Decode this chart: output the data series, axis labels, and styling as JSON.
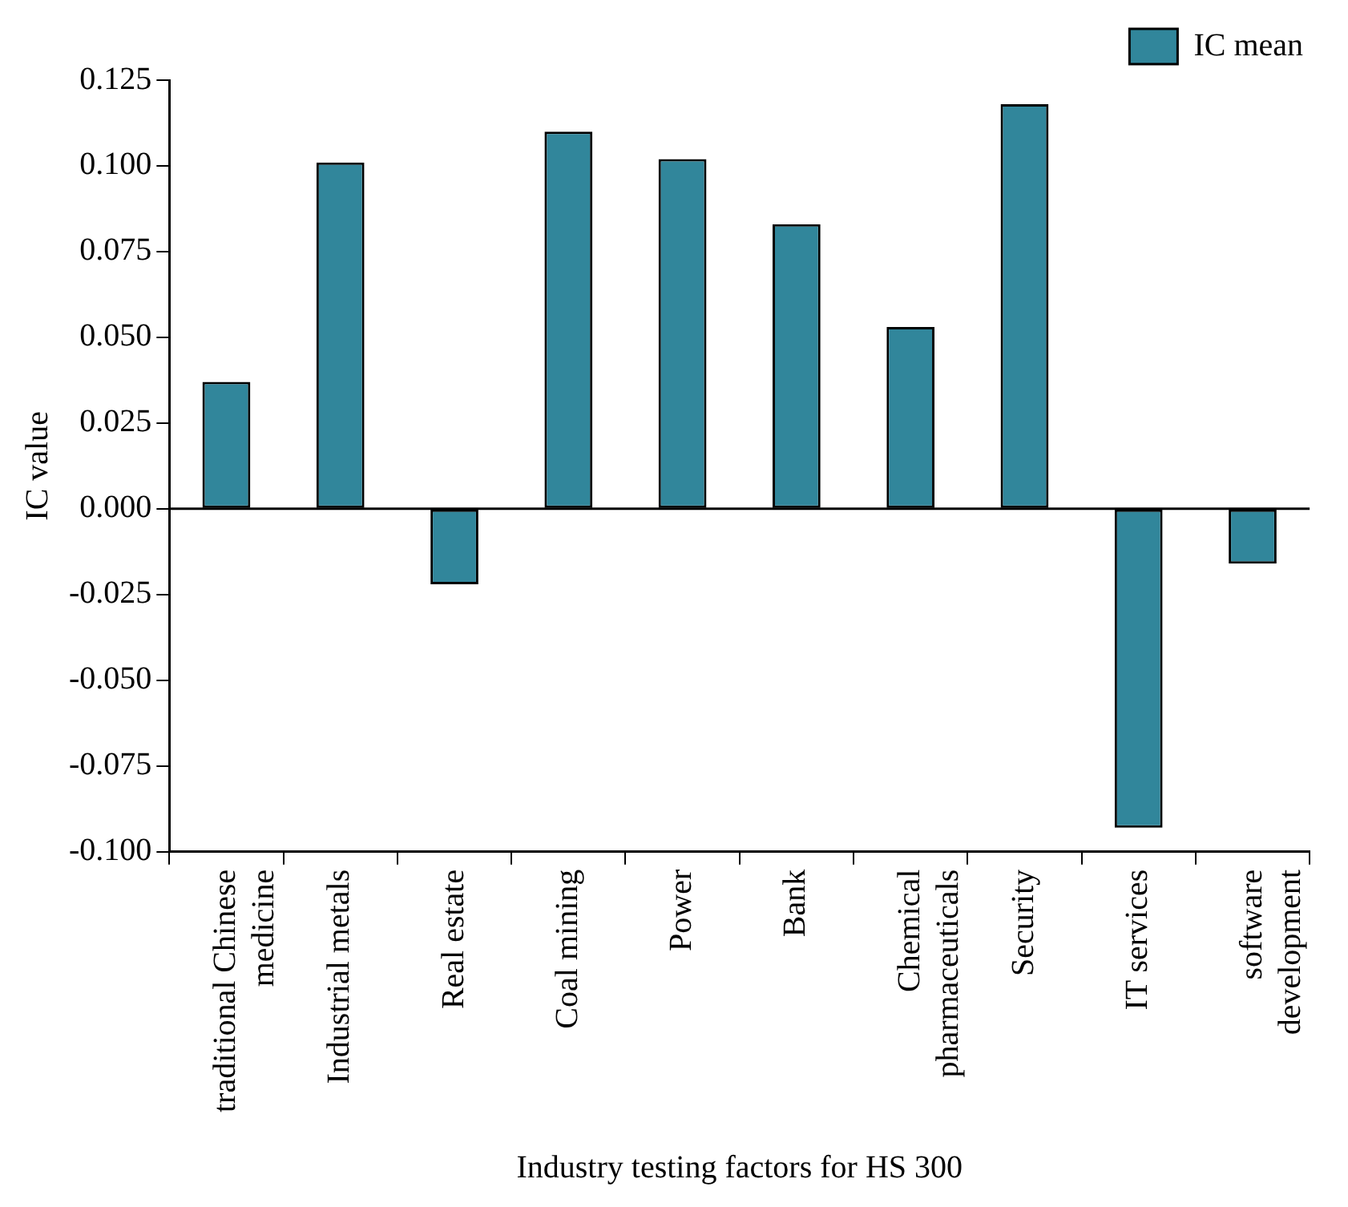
{
  "chart_data": {
    "type": "bar",
    "xlabel": "Industry testing factors for HS 300",
    "ylabel": "IC value",
    "categories": [
      "traditional Chinese medicine",
      "Industrial metals",
      "Real estate",
      "Coal mining",
      "Power",
      "Bank",
      "Chemical pharmaceuticals",
      "Security",
      "IT services",
      "software development"
    ],
    "series": [
      {
        "name": "IC mean",
        "color": "#31869b",
        "values": [
          0.037,
          0.101,
          -0.022,
          0.11,
          0.102,
          0.083,
          0.053,
          0.118,
          -0.093,
          -0.016
        ]
      }
    ],
    "ylim": [
      -0.1,
      0.125
    ],
    "yticks": [
      {
        "value": -0.1,
        "label": "-0.100"
      },
      {
        "value": -0.075,
        "label": "-0.075"
      },
      {
        "value": -0.05,
        "label": "-0.050"
      },
      {
        "value": -0.025,
        "label": "-0.025"
      },
      {
        "value": 0,
        "label": "0.000"
      },
      {
        "value": 0.025,
        "label": "0.025"
      },
      {
        "value": 0.05,
        "label": "0.050"
      },
      {
        "value": 0.075,
        "label": "0.075"
      },
      {
        "value": 0.1,
        "label": "0.100"
      },
      {
        "value": 0.125,
        "label": "0.125"
      }
    ],
    "ref_lines": [
      {
        "axis": "y",
        "value": 0,
        "color": "#000000"
      }
    ],
    "grid": false,
    "legend": "top right"
  }
}
